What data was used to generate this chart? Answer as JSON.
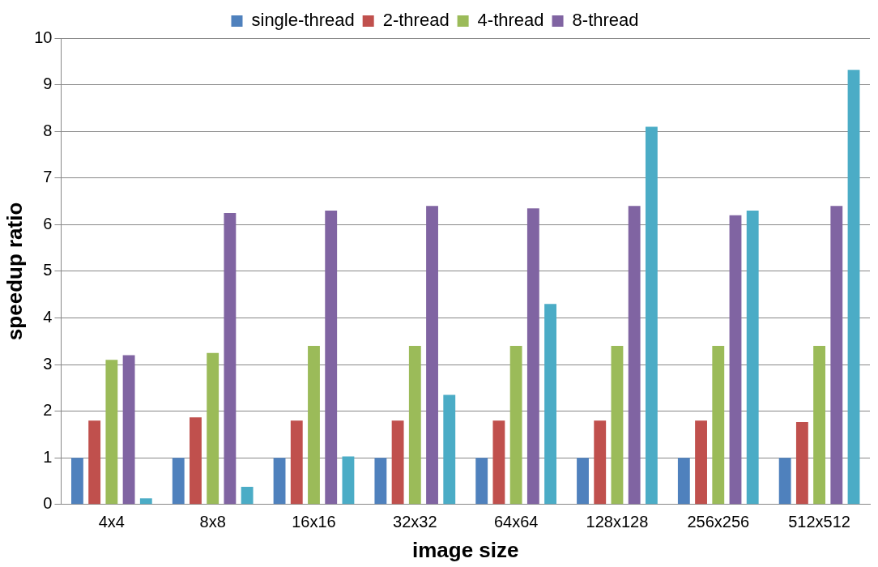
{
  "chart_data": {
    "type": "bar",
    "xlabel": "image size",
    "ylabel": "speedup ratio",
    "categories": [
      "4x4",
      "8x8",
      "16x16",
      "32x32",
      "64x64",
      "128x128",
      "256x256",
      "512x512"
    ],
    "series": [
      {
        "name": "single-thread",
        "color": "#4f81bd",
        "values": [
          1,
          1,
          1,
          1,
          1,
          1,
          1,
          1
        ]
      },
      {
        "name": "2-thread",
        "color": "#c0504d",
        "values": [
          1.8,
          1.87,
          1.8,
          1.8,
          1.8,
          1.8,
          1.8,
          1.77
        ]
      },
      {
        "name": "4-thread",
        "color": "#9bbb59",
        "values": [
          3.1,
          3.25,
          3.4,
          3.4,
          3.4,
          3.4,
          3.4,
          3.4
        ]
      },
      {
        "name": "8-thread",
        "color": "#8064a2",
        "values": [
          3.2,
          6.25,
          6.3,
          6.4,
          6.35,
          6.4,
          6.2,
          6.4
        ]
      },
      {
        "color": "#4bacc6",
        "values": [
          0.13,
          0.38,
          1.03,
          2.35,
          4.3,
          8.1,
          6.3,
          9.32
        ]
      }
    ],
    "ylim": [
      0,
      10
    ],
    "yticks": [
      0,
      1,
      2,
      3,
      4,
      5,
      6,
      7,
      8,
      9,
      10
    ],
    "grid": "y",
    "legend": "top"
  }
}
